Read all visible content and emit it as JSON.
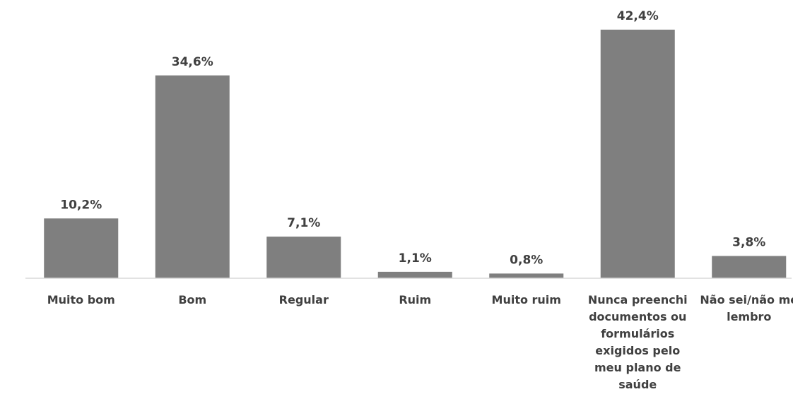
{
  "chart_data": {
    "type": "bar",
    "title": "",
    "xlabel": "",
    "ylabel": "",
    "categories": [
      [
        "Muito bom"
      ],
      [
        "Bom"
      ],
      [
        "Regular"
      ],
      [
        "Ruim"
      ],
      [
        "Muito ruim"
      ],
      [
        "Nunca preenchi",
        "documentos ou",
        "formulários",
        "exigidos pelo",
        "meu plano de",
        "saúde"
      ],
      [
        "Não sei/não me",
        "lembro"
      ]
    ],
    "values": [
      10.2,
      34.6,
      7.1,
      1.1,
      0.8,
      42.4,
      3.8
    ],
    "value_labels": [
      "10,2%",
      "34,6%",
      "7,1%",
      "1,1%",
      "0,8%",
      "42,4%",
      "3,8%"
    ],
    "ylim": [
      0,
      42.4
    ],
    "grid": false,
    "legend": "none",
    "colors": {
      "bar": "#7f7f7f",
      "axis": "#d9d9d9",
      "text": "#404040"
    }
  }
}
